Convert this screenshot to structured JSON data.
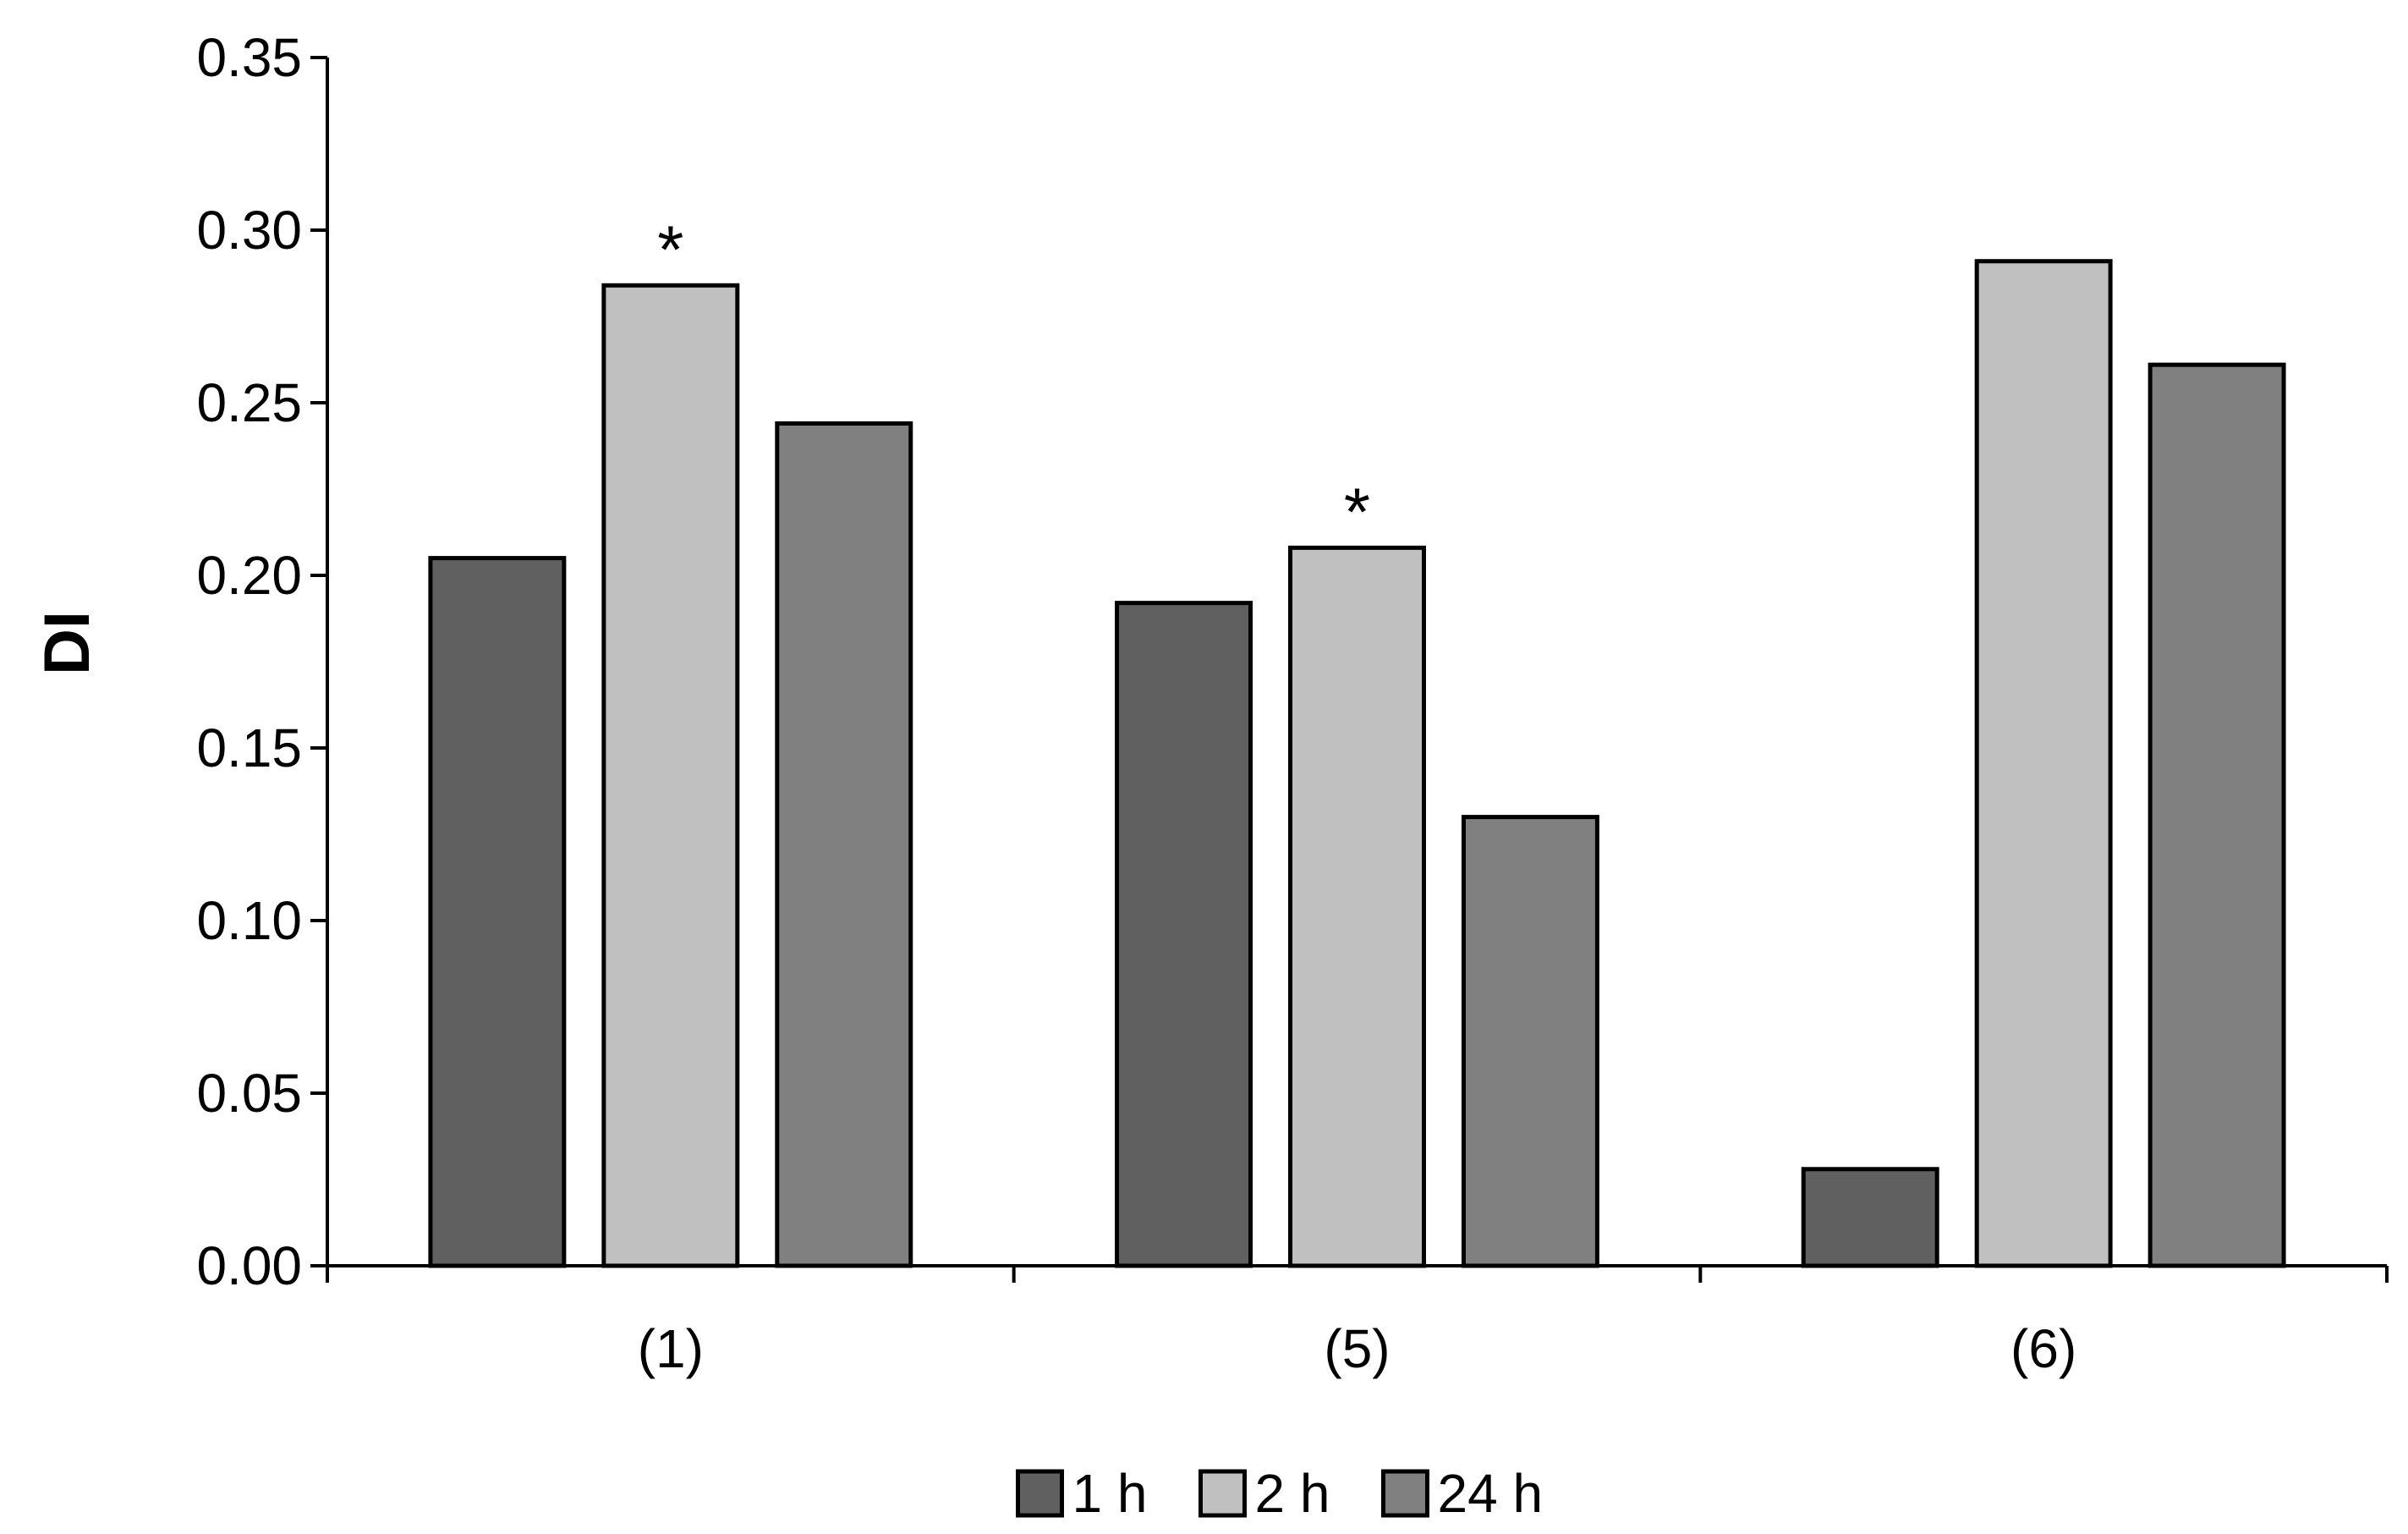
{
  "chart_data": {
    "type": "bar",
    "ylabel": "DI",
    "xlabel": "",
    "ylim": [
      0,
      0.35
    ],
    "yticks": [
      "0.00",
      "0.05",
      "0.10",
      "0.15",
      "0.20",
      "0.25",
      "0.30",
      "0.35"
    ],
    "categories": [
      "(1)",
      "(5)",
      "(6)"
    ],
    "series": [
      {
        "name": "1 h",
        "color": "#606060",
        "values": [
          0.205,
          0.192,
          0.028
        ]
      },
      {
        "name": "2 h",
        "color": "#c0c0c0",
        "values": [
          0.284,
          0.208,
          0.291
        ]
      },
      {
        "name": "24 h",
        "color": "#808080",
        "values": [
          0.244,
          0.13,
          0.261
        ]
      }
    ],
    "annotations": [
      {
        "text": "*",
        "category": "(1)",
        "series": "2 h"
      },
      {
        "text": "*",
        "category": "(5)",
        "series": "2 h"
      }
    ],
    "legend_position": "bottom-center",
    "grid": false
  }
}
